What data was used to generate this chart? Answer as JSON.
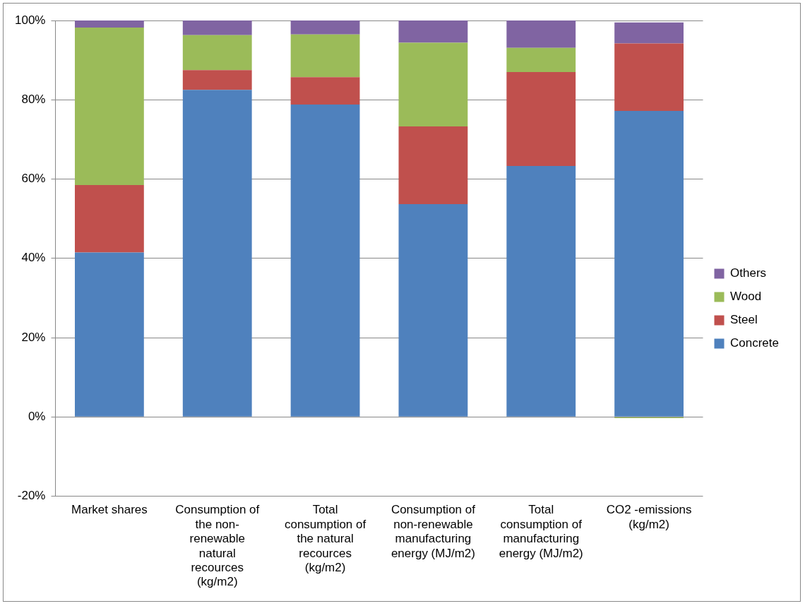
{
  "chart_data": {
    "type": "bar",
    "stacked": true,
    "categories": [
      "Market shares",
      "Consumption of the non-renewable natural recources (kg/m2)",
      "Total consumption of the natural recources (kg/m2)",
      "Consumption of non-renewable manufacturing energy (MJ/m2)",
      "Total consumption of manufacturing energy (MJ/m2)",
      "CO2 -emissions (kg/m2)"
    ],
    "series": [
      {
        "name": "Concrete",
        "color": "#4f81bd",
        "values": [
          41.5,
          82.5,
          78.8,
          53.7,
          63.3,
          77.2
        ]
      },
      {
        "name": "Steel",
        "color": "#c0504d",
        "values": [
          17,
          5,
          6.9,
          19.6,
          23.7,
          17
        ]
      },
      {
        "name": "Wood",
        "color": "#9bbb59",
        "values": [
          39.7,
          8.8,
          10.8,
          21.1,
          6.1,
          -0.3
        ]
      },
      {
        "name": "Others",
        "color": "#8064a2",
        "values": [
          1.8,
          3.7,
          3.5,
          5.6,
          6.9,
          5.3
        ]
      }
    ],
    "ylim": [
      -20,
      100
    ],
    "yticks": [
      {
        "value": -20,
        "label": "-20%"
      },
      {
        "value": 0,
        "label": "0%"
      },
      {
        "value": 20,
        "label": "20%"
      },
      {
        "value": 40,
        "label": "40%"
      },
      {
        "value": 60,
        "label": "60%"
      },
      {
        "value": 80,
        "label": "80%"
      },
      {
        "value": 100,
        "label": "100%"
      }
    ],
    "grid": "y",
    "legend": "right"
  }
}
